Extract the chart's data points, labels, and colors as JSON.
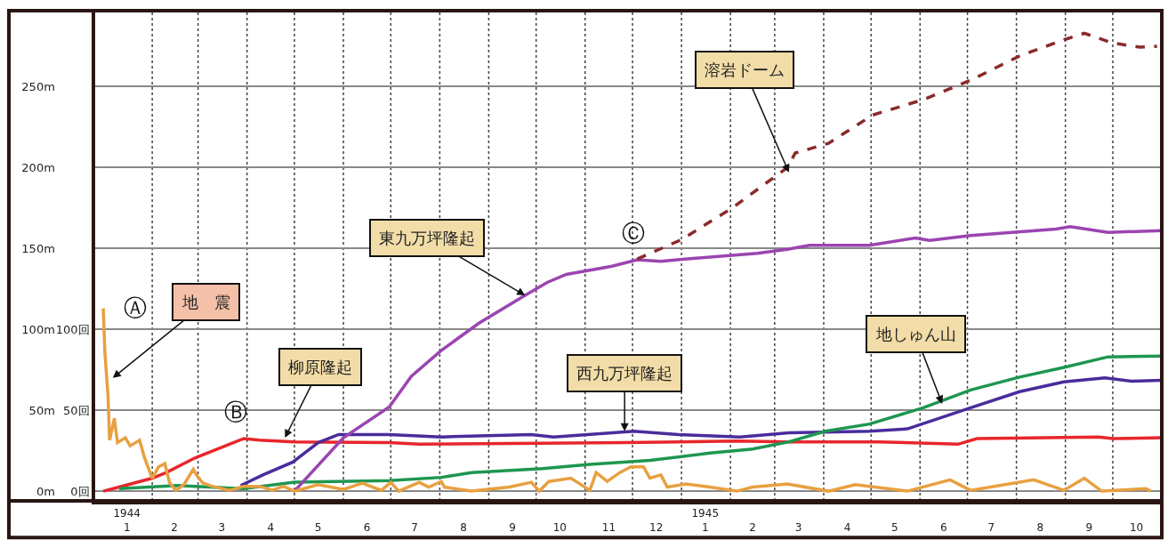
{
  "chart_data": {
    "type": "line",
    "xlim": [
      "1943-12-27",
      "1945-11-01"
    ],
    "xticks": [
      {
        "value": "1944-01-16",
        "label": "1944\n1"
      },
      {
        "value": "1944-02-15",
        "label": "2"
      },
      {
        "value": "1944-03-16",
        "label": "3"
      },
      {
        "value": "1944-04-16",
        "label": "4"
      },
      {
        "value": "1944-05-16",
        "label": "5"
      },
      {
        "value": "1944-06-16",
        "label": "6"
      },
      {
        "value": "1944-07-16",
        "label": "7"
      },
      {
        "value": "1944-08-16",
        "label": "8"
      },
      {
        "value": "1944-09-16",
        "label": "9"
      },
      {
        "value": "1944-10-16",
        "label": "10"
      },
      {
        "value": "1944-11-16",
        "label": "11"
      },
      {
        "value": "1944-12-16",
        "label": "12"
      },
      {
        "value": "1945-01-16",
        "label": "1945\n1"
      },
      {
        "value": "1945-02-15",
        "label": "2"
      },
      {
        "value": "1945-03-16",
        "label": "3"
      },
      {
        "value": "1945-04-16",
        "label": "4"
      },
      {
        "value": "1945-05-16",
        "label": "5"
      },
      {
        "value": "1945-06-16",
        "label": "6"
      },
      {
        "value": "1945-07-16",
        "label": "7"
      },
      {
        "value": "1945-08-16",
        "label": "8"
      },
      {
        "value": "1945-09-16",
        "label": "9"
      },
      {
        "value": "1945-10-16",
        "label": "10"
      },
      {
        "value": "1944-02-01",
        "label": null
      },
      {
        "value": "1944-03-01",
        "label": null
      },
      {
        "value": "1944-04-01",
        "label": null
      },
      {
        "value": "1944-05-01",
        "label": null
      },
      {
        "value": "1944-06-01",
        "label": null
      },
      {
        "value": "1944-07-01",
        "label": null
      },
      {
        "value": "1944-08-01",
        "label": null
      },
      {
        "value": "1944-09-01",
        "label": null
      },
      {
        "value": "1944-10-01",
        "label": null
      },
      {
        "value": "1944-11-01",
        "label": null
      },
      {
        "value": "1944-12-01",
        "label": null
      },
      {
        "value": "1945-01-01",
        "label": null
      },
      {
        "value": "1945-02-01",
        "label": null
      },
      {
        "value": "1945-03-01",
        "label": null
      },
      {
        "value": "1945-04-01",
        "label": null
      },
      {
        "value": "1945-05-01",
        "label": null
      },
      {
        "value": "1945-06-01",
        "label": null
      },
      {
        "value": "1945-07-01",
        "label": null
      },
      {
        "value": "1945-08-01",
        "label": null
      },
      {
        "value": "1945-09-01",
        "label": null
      },
      {
        "value": "1945-10-01",
        "label": null
      }
    ],
    "ylim": [
      -6,
      297
    ],
    "yticks": [
      {
        "value": 0,
        "label": "0m"
      },
      {
        "value": 50,
        "label": "50m"
      },
      {
        "value": 100,
        "label": "100m"
      },
      {
        "value": 150,
        "label": "150m"
      },
      {
        "value": 200,
        "label": "200m"
      },
      {
        "value": 250,
        "label": "250m"
      }
    ],
    "y2lim": [
      -6,
      297
    ],
    "y2ticks": [
      {
        "value": 0,
        "label": "0回"
      },
      {
        "value": 50,
        "label": "50回"
      },
      {
        "value": 100,
        "label": "100回"
      }
    ],
    "grid": true,
    "marker": "none",
    "line_style": "solid",
    "series": [
      {
        "color": "#e8a040",
        "axis": "y2",
        "x": [
          "1944-01-01",
          "1944-01-02",
          "1944-01-04",
          "1944-01-05",
          "1944-01-08",
          "1944-01-10",
          "1944-01-15",
          "1944-01-18",
          "1944-01-24",
          "1944-01-27",
          "1944-02-01",
          "1944-02-05",
          "1944-02-09",
          "1944-02-12",
          "1944-02-16",
          "1944-02-21",
          "1944-02-27",
          "1944-02-29",
          "1944-03-04",
          "1944-03-10",
          "1944-03-21",
          "1944-03-30",
          "1944-04-09",
          "1944-04-17",
          "1944-04-24",
          "1944-05-01",
          "1944-05-16",
          "1944-06-01",
          "1944-06-13",
          "1944-06-25",
          "1944-07-01",
          "1944-07-06",
          "1944-07-19",
          "1944-07-25",
          "1944-08-02",
          "1944-08-04",
          "1944-08-21",
          "1944-09-14",
          "1944-09-28",
          "1944-10-03",
          "1944-10-09",
          "1944-10-23",
          "1944-11-04",
          "1944-11-08",
          "1944-11-15",
          "1944-11-23",
          "1944-11-30",
          "1944-12-08",
          "1944-12-12",
          "1944-12-19",
          "1944-12-23",
          "1945-01-04",
          "1945-01-19",
          "1945-02-05",
          "1945-02-15",
          "1945-03-09",
          "1945-04-04",
          "1945-04-21",
          "1945-05-24",
          "1945-06-20",
          "1945-07-03",
          "1945-08-12",
          "1945-08-31",
          "1945-09-13",
          "1945-09-24",
          "1945-10-22",
          "1945-10-25"
        ],
        "values": [
          113,
          86,
          59,
          31.5,
          45,
          30,
          33,
          28,
          31.5,
          21,
          8,
          15,
          17,
          5,
          0.5,
          4,
          13.5,
          10,
          5,
          3,
          0.5,
          3,
          3,
          0.5,
          3,
          0,
          4,
          1,
          5,
          0.5,
          5.5,
          0,
          5.5,
          2.5,
          6,
          2.5,
          0,
          2.5,
          5.5,
          0,
          6,
          8,
          0.5,
          11.5,
          6,
          11.5,
          15,
          15,
          8,
          10,
          2.5,
          4.5,
          2.5,
          0,
          2.5,
          4.5,
          0,
          4,
          0,
          7,
          0.5,
          7,
          0.5,
          8,
          0,
          1.5,
          0
        ]
      },
      {
        "color": "#e8262b",
        "x": [
          "1944-01-01",
          "1944-01-11",
          "1944-02-01",
          "1944-02-10",
          "1944-02-28",
          "1944-03-17",
          "1944-03-30",
          "1944-04-09",
          "1944-05-01",
          "1944-06-30",
          "1944-07-19",
          "1944-11-26",
          "1945-02-05",
          "1945-03-10",
          "1945-05-06",
          "1945-06-25",
          "1945-07-07",
          "1945-09-22",
          "1945-10-01",
          "1945-11-01"
        ],
        "values": [
          0,
          2.5,
          8,
          11.5,
          20.5,
          27.5,
          32.5,
          31.5,
          30.5,
          30,
          29,
          30,
          31,
          30.5,
          30.5,
          29,
          32.5,
          33.5,
          32.5,
          33
        ]
      },
      {
        "color": "#4a2c9c",
        "x": [
          "1944-03-28",
          "1944-04-11",
          "1944-04-30",
          "1944-05-16",
          "1944-05-29",
          "1944-06-30",
          "1944-08-02",
          "1944-09-28",
          "1944-10-12",
          "1944-12-02",
          "1944-12-30",
          "1945-02-07",
          "1945-03-10",
          "1945-04-30",
          "1945-05-24",
          "1945-07-03",
          "1945-08-03",
          "1945-08-31",
          "1945-09-26",
          "1945-10-13",
          "1945-11-01"
        ],
        "values": [
          3.5,
          10,
          18,
          30,
          35,
          35,
          33.5,
          35,
          33.5,
          37,
          35,
          33.5,
          36,
          37,
          38.5,
          51.5,
          61.5,
          67.5,
          70,
          68,
          68.5
        ]
      },
      {
        "color": "#1e9650",
        "x": [
          "1944-01-11",
          "1944-02-17",
          "1944-03-30",
          "1944-05-01",
          "1944-06-30",
          "1944-08-02",
          "1944-08-21",
          "1944-10-05",
          "1944-11-04",
          "1944-12-12",
          "1945-01-19",
          "1945-02-15",
          "1945-03-10",
          "1945-04-02",
          "1945-04-30",
          "1945-06-03",
          "1945-07-03",
          "1945-08-03",
          "1945-08-31",
          "1945-09-28",
          "1945-11-01"
        ],
        "values": [
          1.5,
          3.5,
          1.5,
          5.5,
          6.5,
          8.5,
          11.5,
          14,
          16.5,
          19,
          23.5,
          26,
          30.5,
          37,
          41.5,
          51.5,
          62.5,
          70.5,
          76.5,
          83,
          83.5
        ]
      },
      {
        "color": "#9b45b0",
        "x": [
          "1944-05-01",
          "1944-06-01",
          "1944-06-30",
          "1944-07-14",
          "1944-08-02",
          "1944-08-26",
          "1944-09-24",
          "1944-10-08",
          "1944-10-20",
          "1944-11-18",
          "1944-12-04",
          "1944-12-19",
          "1945-01-03",
          "1945-02-18",
          "1945-03-09",
          "1945-03-23",
          "1945-04-30",
          "1945-05-29",
          "1945-06-07",
          "1945-07-03",
          "1945-08-26",
          "1945-09-04",
          "1945-09-28",
          "1945-11-01"
        ],
        "values": [
          0,
          33,
          52,
          71,
          87,
          104,
          121,
          129,
          134,
          139,
          143,
          142,
          143.5,
          147,
          149.5,
          152,
          152,
          156.5,
          155,
          158,
          162,
          163.5,
          160,
          161
        ]
      },
      {
        "color": "#8b2a2a",
        "line_style": "dashed",
        "x": [
          "1944-12-04",
          "1945-01-01",
          "1945-02-02",
          "1945-03-09",
          "1945-03-14",
          "1945-04-04",
          "1945-05-02",
          "1945-06-03",
          "1945-07-03",
          "1945-08-03",
          "1945-08-31",
          "1945-09-13",
          "1945-10-01",
          "1945-10-18",
          "1945-10-29"
        ],
        "values": [
          143.5,
          155.5,
          175,
          200,
          209,
          215,
          232.5,
          242,
          254,
          269,
          279,
          283,
          277,
          274.5,
          275
        ]
      }
    ],
    "annotations": [
      {
        "text": "地　震",
        "x": "1944-01-07",
        "y": 70
      },
      {
        "text": "柳原隆起",
        "x": "1944-04-25",
        "y": 33
      },
      {
        "text": "東九万坪隆起",
        "x": "1944-09-24",
        "y": 121
      },
      {
        "text": "溶岩ドーム",
        "x": "1945-03-10",
        "y": 197
      },
      {
        "text": "西九万坪隆起",
        "x": "1944-11-26",
        "y": 37
      },
      {
        "text": "地しゅん山",
        "x": "1945-06-15",
        "y": 54
      },
      "Ⓐ",
      "Ⓑ",
      "Ⓒ"
    ]
  }
}
